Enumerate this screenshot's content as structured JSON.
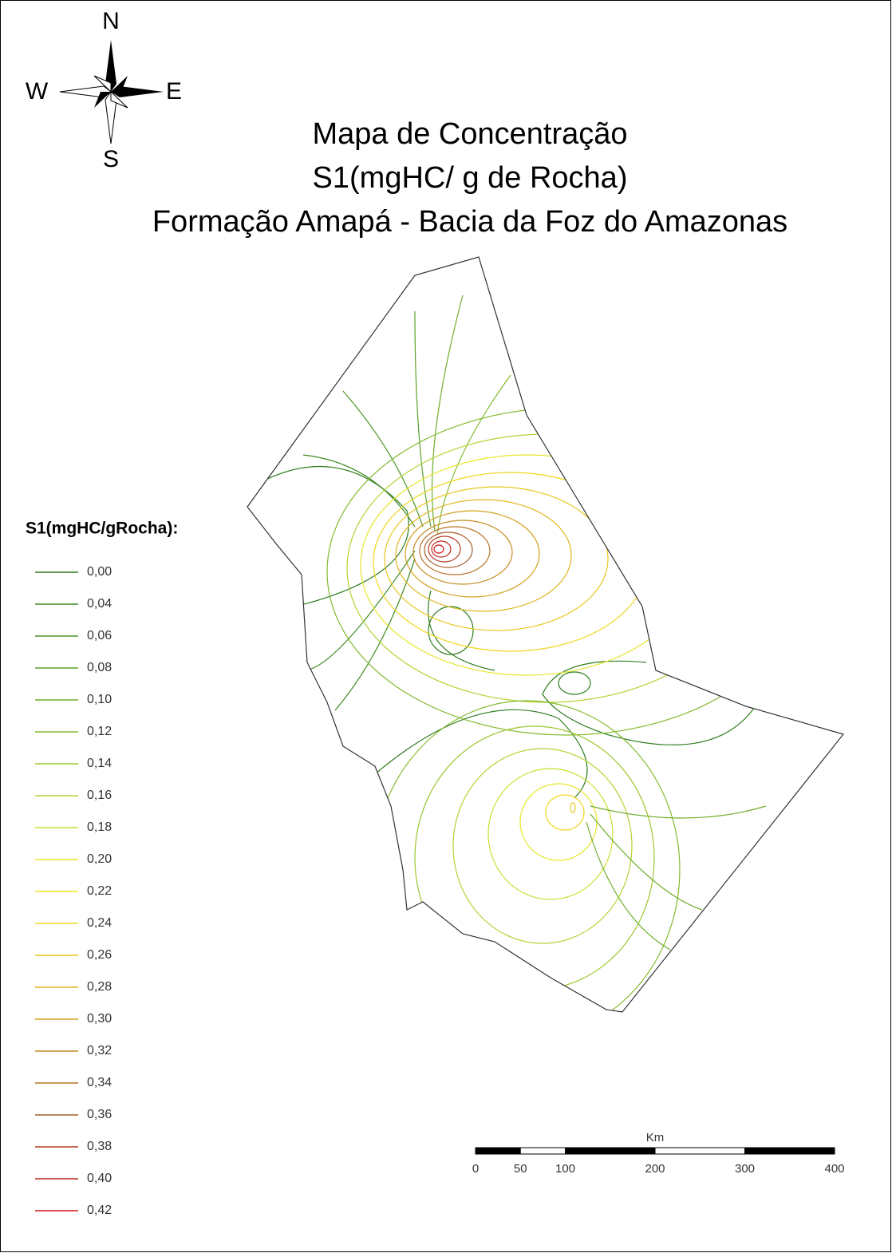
{
  "compass": {
    "north": "N",
    "south": "S",
    "west": "W",
    "east": "E"
  },
  "title": [
    "Mapa de Concentração",
    "S1(mgHC/ g de Rocha)",
    "Formação Amapá - Bacia da Foz do Amazonas"
  ],
  "legend": {
    "title": "S1(mgHC/gRocha):",
    "items": [
      {
        "label": "0,00",
        "color": "#2f7d1f"
      },
      {
        "label": "0,04",
        "color": "#3d8a22"
      },
      {
        "label": "0,06",
        "color": "#4c9626"
      },
      {
        "label": "0,08",
        "color": "#5ca22a"
      },
      {
        "label": "0,10",
        "color": "#6fae2c"
      },
      {
        "label": "0,12",
        "color": "#84ba2e"
      },
      {
        "label": "0,14",
        "color": "#9cc630"
      },
      {
        "label": "0,16",
        "color": "#b5d232"
      },
      {
        "label": "0,18",
        "color": "#cfdd30"
      },
      {
        "label": "0,20",
        "color": "#e6e62a"
      },
      {
        "label": "0,22",
        "color": "#f0e424"
      },
      {
        "label": "0,24",
        "color": "#efd820"
      },
      {
        "label": "0,26",
        "color": "#e8c81e"
      },
      {
        "label": "0,28",
        "color": "#dfb61e"
      },
      {
        "label": "0,30",
        "color": "#d4a21e"
      },
      {
        "label": "0,32",
        "color": "#c68a20"
      },
      {
        "label": "0,34",
        "color": "#b87424"
      },
      {
        "label": "0,36",
        "color": "#a85e26"
      },
      {
        "label": "0,38",
        "color": "#b03a22"
      },
      {
        "label": "0,40",
        "color": "#c0281c"
      },
      {
        "label": "0,42",
        "color": "#d41414"
      }
    ]
  },
  "scale": {
    "unit": "Km",
    "ticks": [
      0,
      50,
      100,
      200,
      300,
      400
    ]
  }
}
